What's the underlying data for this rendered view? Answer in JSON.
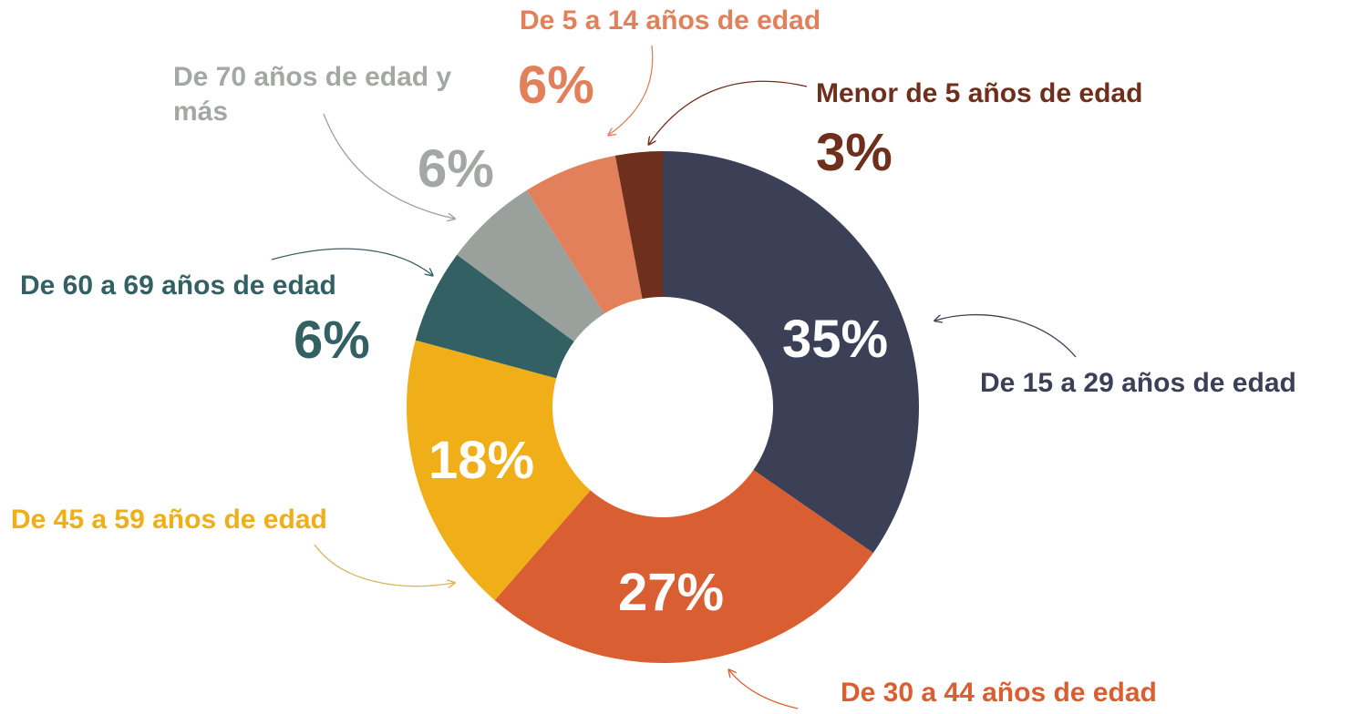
{
  "chart_data": {
    "type": "donut",
    "categories": [
      "De 15 a 29 años de edad",
      "De 30 a 44 años de edad",
      "De 45 a 59 años de edad",
      "De 60 a 69 años de edad",
      "De 70 años de edad y más",
      "De 5 a 14 años de edad",
      "Menor de 5 años de edad"
    ],
    "values": [
      35,
      27,
      18,
      6,
      6,
      6,
      3
    ],
    "value_labels": [
      "35%",
      "27%",
      "18%",
      "6%",
      "6%",
      "6%",
      "3%"
    ],
    "colors": [
      "#3b4057",
      "#d95f32",
      "#f0ae19",
      "#336163",
      "#9aa09c",
      "#e2805c",
      "#6e2f1c"
    ]
  }
}
